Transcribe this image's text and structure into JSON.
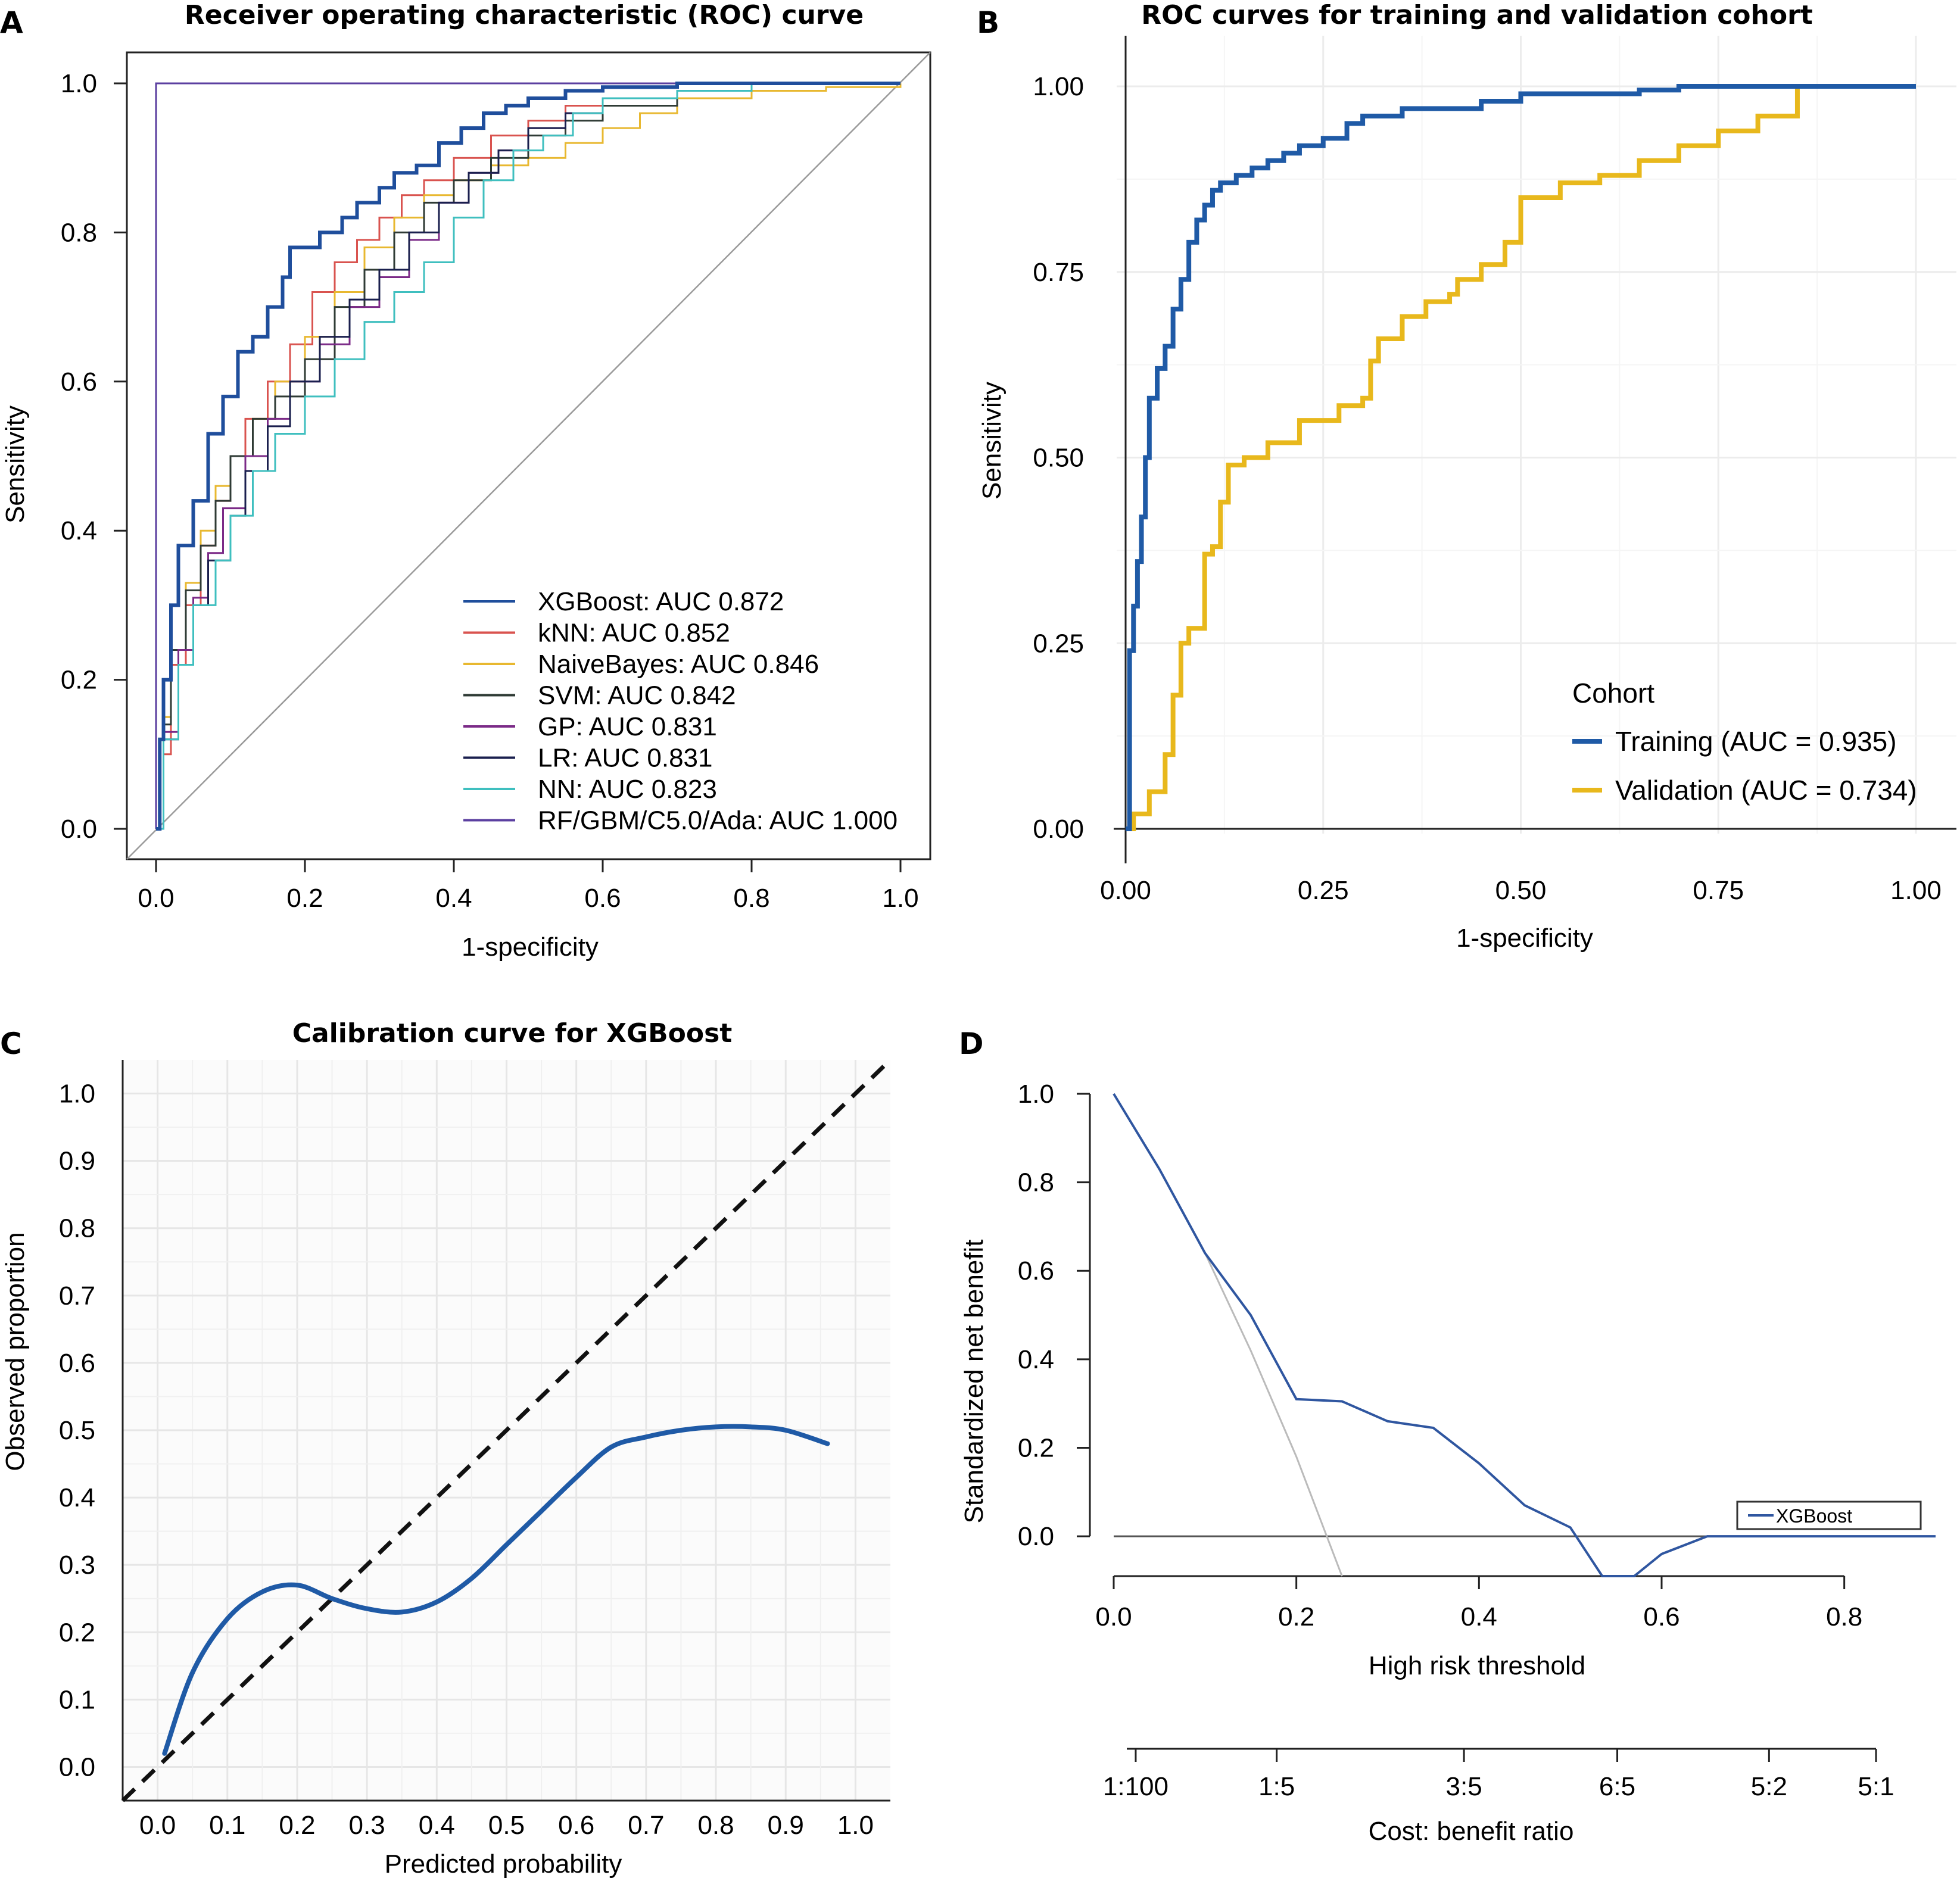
{
  "panel_letters": {
    "a": "A",
    "b": "B",
    "c": "C",
    "d": "D"
  },
  "chart_data": [
    {
      "type": "line",
      "title": "Receiver operating characteristic (ROC) curve",
      "xlabel": "1-specificity",
      "ylabel": "Sensitivity",
      "xlim": [
        0,
        1
      ],
      "ylim": [
        0,
        1
      ],
      "xticks": [
        "0.0",
        "0.2",
        "0.4",
        "0.6",
        "0.8",
        "1.0"
      ],
      "yticks": [
        "0.0",
        "0.2",
        "0.4",
        "0.6",
        "0.8",
        "1.0"
      ],
      "diagonal_reference": true,
      "legend_position": "bottom-right",
      "series": [
        {
          "name": "XGBoost: AUC 0.872",
          "color": "#1f4e9c",
          "width": 6,
          "x": [
            0,
            0.005,
            0.01,
            0.02,
            0.03,
            0.05,
            0.07,
            0.09,
            0.11,
            0.13,
            0.15,
            0.17,
            0.18,
            0.2,
            0.22,
            0.25,
            0.27,
            0.3,
            0.32,
            0.35,
            0.38,
            0.41,
            0.44,
            0.47,
            0.5,
            0.55,
            0.6,
            0.7,
            0.8,
            0.9,
            1.0
          ],
          "y": [
            0,
            0.12,
            0.2,
            0.3,
            0.38,
            0.44,
            0.53,
            0.58,
            0.64,
            0.66,
            0.7,
            0.74,
            0.78,
            0.78,
            0.8,
            0.82,
            0.84,
            0.86,
            0.88,
            0.89,
            0.92,
            0.94,
            0.96,
            0.97,
            0.98,
            0.99,
            0.995,
            1.0,
            1.0,
            1.0,
            1.0
          ]
        },
        {
          "name": "kNN: AUC 0.852",
          "color": "#d9534f",
          "width": 3,
          "x": [
            0,
            0.01,
            0.02,
            0.04,
            0.06,
            0.08,
            0.1,
            0.12,
            0.15,
            0.18,
            0.21,
            0.24,
            0.27,
            0.3,
            0.33,
            0.36,
            0.4,
            0.45,
            0.5,
            0.55,
            0.6,
            0.7,
            0.8,
            1.0
          ],
          "y": [
            0,
            0.1,
            0.22,
            0.3,
            0.38,
            0.44,
            0.5,
            0.55,
            0.6,
            0.65,
            0.72,
            0.76,
            0.79,
            0.82,
            0.85,
            0.87,
            0.9,
            0.93,
            0.95,
            0.97,
            0.98,
            0.99,
            1.0,
            1.0
          ]
        },
        {
          "name": "NaiveBayes: AUC 0.846",
          "color": "#e8b830",
          "width": 3,
          "x": [
            0,
            0.01,
            0.02,
            0.04,
            0.06,
            0.08,
            0.1,
            0.13,
            0.16,
            0.2,
            0.24,
            0.28,
            0.32,
            0.36,
            0.4,
            0.45,
            0.5,
            0.55,
            0.6,
            0.65,
            0.7,
            0.8,
            0.9,
            1.0
          ],
          "y": [
            0,
            0.15,
            0.24,
            0.33,
            0.4,
            0.46,
            0.5,
            0.55,
            0.6,
            0.66,
            0.72,
            0.78,
            0.82,
            0.85,
            0.87,
            0.89,
            0.9,
            0.92,
            0.94,
            0.96,
            0.98,
            0.99,
            0.995,
            1.0
          ]
        },
        {
          "name": "SVM: AUC 0.842",
          "color": "#2f3b35",
          "width": 3,
          "x": [
            0,
            0.01,
            0.02,
            0.04,
            0.06,
            0.08,
            0.1,
            0.13,
            0.16,
            0.2,
            0.24,
            0.28,
            0.32,
            0.36,
            0.4,
            0.45,
            0.5,
            0.55,
            0.6,
            0.7,
            0.8,
            1.0
          ],
          "y": [
            0,
            0.14,
            0.24,
            0.32,
            0.38,
            0.44,
            0.5,
            0.55,
            0.58,
            0.63,
            0.7,
            0.75,
            0.8,
            0.84,
            0.87,
            0.9,
            0.93,
            0.95,
            0.97,
            0.99,
            1.0,
            1.0
          ]
        },
        {
          "name": "GP: AUC 0.831",
          "color": "#7b2a87",
          "width": 3,
          "x": [
            0,
            0.01,
            0.03,
            0.05,
            0.07,
            0.09,
            0.12,
            0.15,
            0.18,
            0.22,
            0.26,
            0.3,
            0.34,
            0.38,
            0.42,
            0.46,
            0.5,
            0.55,
            0.6,
            0.7,
            0.8,
            1.0
          ],
          "y": [
            0,
            0.13,
            0.24,
            0.31,
            0.37,
            0.43,
            0.5,
            0.55,
            0.6,
            0.65,
            0.7,
            0.74,
            0.79,
            0.84,
            0.88,
            0.91,
            0.94,
            0.96,
            0.98,
            0.99,
            1.0,
            1.0
          ]
        },
        {
          "name": "LR: AUC 0.831",
          "color": "#1a1f4e",
          "width": 3,
          "x": [
            0,
            0.01,
            0.03,
            0.05,
            0.07,
            0.1,
            0.12,
            0.15,
            0.18,
            0.22,
            0.26,
            0.3,
            0.34,
            0.38,
            0.42,
            0.46,
            0.5,
            0.55,
            0.6,
            0.7,
            0.8,
            1.0
          ],
          "y": [
            0,
            0.12,
            0.22,
            0.3,
            0.36,
            0.42,
            0.48,
            0.54,
            0.6,
            0.66,
            0.71,
            0.75,
            0.8,
            0.84,
            0.88,
            0.91,
            0.94,
            0.96,
            0.98,
            0.99,
            1.0,
            1.0
          ]
        },
        {
          "name": "NN: AUC 0.823",
          "color": "#3fbfbf",
          "width": 3,
          "x": [
            0,
            0.01,
            0.03,
            0.05,
            0.08,
            0.1,
            0.13,
            0.16,
            0.2,
            0.24,
            0.28,
            0.32,
            0.36,
            0.4,
            0.44,
            0.48,
            0.52,
            0.56,
            0.6,
            0.7,
            0.8,
            1.0
          ],
          "y": [
            0,
            0.12,
            0.22,
            0.3,
            0.36,
            0.42,
            0.48,
            0.53,
            0.58,
            0.63,
            0.68,
            0.72,
            0.76,
            0.82,
            0.87,
            0.91,
            0.93,
            0.96,
            0.98,
            0.99,
            1.0,
            1.0
          ]
        },
        {
          "name": "RF/GBM/C5.0/Ada: AUC 1.000",
          "color": "#5b3fa0",
          "width": 3,
          "x": [
            0,
            0,
            1.0
          ],
          "y": [
            0,
            1.0,
            1.0
          ]
        }
      ]
    },
    {
      "type": "line",
      "title": "ROC curves for training and validation cohort",
      "xlabel": "1-specificity",
      "ylabel": "Sensitivity",
      "xlim": [
        0,
        1
      ],
      "ylim": [
        0,
        1
      ],
      "xticks": [
        "0.00",
        "0.25",
        "0.50",
        "0.75",
        "1.00"
      ],
      "yticks": [
        "0.00",
        "0.25",
        "0.50",
        "0.75",
        "1.00"
      ],
      "grid": true,
      "legend_title": "Cohort",
      "legend_position": "bottom-right",
      "series": [
        {
          "name": "Training (AUC = 0.935)",
          "color": "#1f5aa6",
          "width": 8,
          "x": [
            0,
            0.005,
            0.01,
            0.015,
            0.02,
            0.025,
            0.03,
            0.04,
            0.05,
            0.06,
            0.07,
            0.08,
            0.09,
            0.1,
            0.11,
            0.12,
            0.14,
            0.16,
            0.18,
            0.2,
            0.22,
            0.25,
            0.28,
            0.3,
            0.35,
            0.45,
            0.5,
            0.65,
            0.7,
            0.85,
            1.0
          ],
          "y": [
            0,
            0.24,
            0.3,
            0.36,
            0.42,
            0.5,
            0.58,
            0.62,
            0.65,
            0.7,
            0.74,
            0.79,
            0.82,
            0.84,
            0.86,
            0.87,
            0.88,
            0.89,
            0.9,
            0.91,
            0.92,
            0.93,
            0.95,
            0.96,
            0.97,
            0.98,
            0.99,
            0.995,
            1.0,
            1.0,
            1.0
          ]
        },
        {
          "name": "Validation (AUC = 0.734)",
          "color": "#e8b81c",
          "width": 8,
          "x": [
            0,
            0.01,
            0.03,
            0.05,
            0.06,
            0.07,
            0.08,
            0.1,
            0.11,
            0.12,
            0.13,
            0.15,
            0.18,
            0.22,
            0.27,
            0.3,
            0.31,
            0.32,
            0.35,
            0.38,
            0.41,
            0.42,
            0.45,
            0.48,
            0.5,
            0.55,
            0.6,
            0.65,
            0.7,
            0.75,
            0.8,
            0.85,
            0.9,
            1.0
          ],
          "y": [
            0,
            0.02,
            0.05,
            0.1,
            0.18,
            0.25,
            0.27,
            0.37,
            0.38,
            0.44,
            0.49,
            0.5,
            0.52,
            0.55,
            0.57,
            0.58,
            0.63,
            0.66,
            0.69,
            0.71,
            0.72,
            0.74,
            0.76,
            0.79,
            0.85,
            0.87,
            0.88,
            0.9,
            0.92,
            0.94,
            0.96,
            1.0,
            1.0,
            1.0
          ]
        }
      ]
    },
    {
      "type": "line",
      "title": "Calibration curve for XGBoost",
      "xlabel": "Predicted probability",
      "ylabel": "Observed proportion",
      "xlim": [
        -0.05,
        1.05
      ],
      "ylim": [
        -0.05,
        1.05
      ],
      "xticks": [
        "0.0",
        "0.1",
        "0.2",
        "0.3",
        "0.4",
        "0.5",
        "0.6",
        "0.7",
        "0.8",
        "0.9",
        "1.0"
      ],
      "yticks": [
        "0.0",
        "0.1",
        "0.2",
        "0.3",
        "0.4",
        "0.5",
        "0.6",
        "0.7",
        "0.8",
        "0.9",
        "1.0"
      ],
      "grid": true,
      "diagonal_reference": "dashed",
      "series": [
        {
          "color": "#1f5aa6",
          "width": 8,
          "x": [
            0.01,
            0.05,
            0.1,
            0.15,
            0.2,
            0.25,
            0.3,
            0.35,
            0.4,
            0.45,
            0.5,
            0.55,
            0.6,
            0.65,
            0.7,
            0.75,
            0.8,
            0.85,
            0.9,
            0.96
          ],
          "y": [
            0.02,
            0.14,
            0.22,
            0.26,
            0.27,
            0.25,
            0.235,
            0.23,
            0.245,
            0.28,
            0.33,
            0.38,
            0.43,
            0.475,
            0.49,
            0.5,
            0.505,
            0.505,
            0.5,
            0.48
          ]
        }
      ]
    },
    {
      "type": "line",
      "title": "",
      "xlabel": "High risk threshold",
      "ylabel": "Standardized net benefit",
      "xlim": [
        0,
        0.9
      ],
      "ylim": [
        -0.09,
        1.0
      ],
      "xticks": [
        "0.0",
        "0.2",
        "0.4",
        "0.6",
        "0.8"
      ],
      "yticks": [
        "0.0",
        "0.2",
        "0.4",
        "0.6",
        "0.8",
        "1.0"
      ],
      "secondary_axis": {
        "label": "Cost: benefit ratio",
        "ticks": [
          "1:100",
          "1:5",
          "3:5",
          "6:5",
          "5:2",
          "5:1"
        ],
        "tick_thresholds": [
          0.0099,
          0.1667,
          0.375,
          0.5455,
          0.7143,
          0.8333
        ]
      },
      "legend_position": "right",
      "series": [
        {
          "name": "XGBoost",
          "color": "#2f56a0",
          "width": 4,
          "x": [
            0,
            0.05,
            0.1,
            0.15,
            0.2,
            0.25,
            0.3,
            0.35,
            0.4,
            0.45,
            0.5,
            0.535,
            0.57,
            0.6,
            0.65,
            0.9
          ],
          "y": [
            1.0,
            0.83,
            0.64,
            0.5,
            0.31,
            0.305,
            0.26,
            0.245,
            0.165,
            0.07,
            0.02,
            -0.09,
            -0.09,
            -0.04,
            0.0,
            0.0
          ]
        },
        {
          "color": "#bbbbbb",
          "width": 3,
          "x": [
            0,
            0.05,
            0.1,
            0.15,
            0.2,
            0.25
          ],
          "y": [
            1.0,
            0.83,
            0.64,
            0.42,
            0.18,
            -0.09
          ]
        },
        {
          "color": "#555555",
          "width": 3,
          "x": [
            0,
            0.9
          ],
          "y": [
            0,
            0
          ]
        }
      ]
    }
  ]
}
